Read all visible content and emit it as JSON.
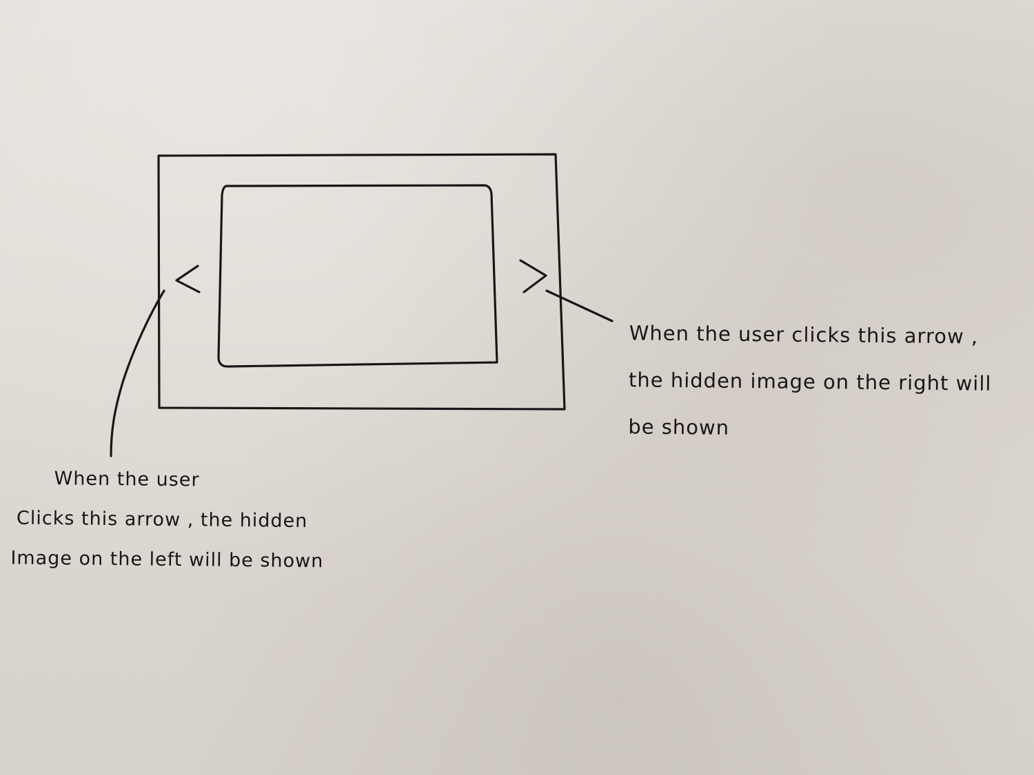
{
  "diagram": {
    "outer_frame": "carousel-container",
    "inner_frame": "displayed-image",
    "left_arrow": {
      "glyph": "<",
      "icon": "chevron-left-icon"
    },
    "right_arrow": {
      "glyph": ">",
      "icon": "chevron-right-icon"
    },
    "ink_color": "#1a1617",
    "paper_color": "#ddd8d2"
  },
  "annotations": {
    "right": {
      "lines": [
        "When the user clicks this arrow ,",
        "the hidden image on the right will",
        "be shown"
      ]
    },
    "left": {
      "lines": [
        "When the user",
        "Clicks this arrow , the hidden",
        "Image on the left will be shown"
      ]
    }
  }
}
